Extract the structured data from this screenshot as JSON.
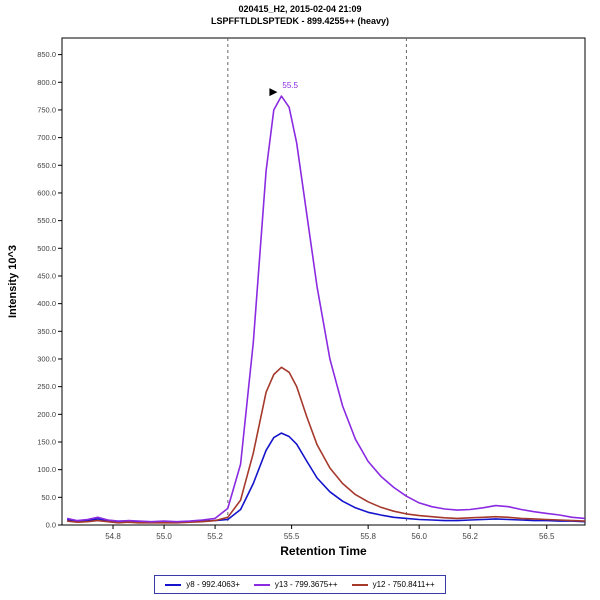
{
  "header": {
    "line1": "020415_H2, 2015-02-04 21:09",
    "line2": "LSPFFTLDLSPTEDK - 899.4255++ (heavy)"
  },
  "chart_data": {
    "type": "line",
    "title": "020415_H2, 2015-02-04 21:09",
    "subtitle": "LSPFFTLDLSPTEDK - 899.4255++ (heavy)",
    "xlabel": "Retention Time",
    "ylabel": "Intensity 10^3",
    "xlim": [
      54.6,
      56.65
    ],
    "ylim": [
      0,
      880
    ],
    "x_ticks": [
      54.8,
      55.0,
      55.2,
      55.5,
      55.8,
      56.0,
      56.2,
      56.5
    ],
    "y_ticks": [
      0,
      50,
      100,
      150,
      200,
      250,
      300,
      350,
      400,
      450,
      500,
      550,
      600,
      650,
      700,
      750,
      800,
      850
    ],
    "boundaries": [
      55.25,
      55.95
    ],
    "boundary_style": {
      "color": "#666666",
      "dash": "3,3"
    },
    "annotation": {
      "text": "55.5",
      "x": 55.46,
      "y": 775,
      "color": "#8a2be2",
      "arrow_color": "#000000"
    },
    "legend_position": "bottom",
    "grid": false,
    "x": [
      54.62,
      54.66,
      54.7,
      54.74,
      54.78,
      54.82,
      54.86,
      54.9,
      54.95,
      55.0,
      55.05,
      55.1,
      55.15,
      55.2,
      55.25,
      55.3,
      55.35,
      55.4,
      55.43,
      55.46,
      55.49,
      55.52,
      55.56,
      55.6,
      55.65,
      55.7,
      55.75,
      55.8,
      55.85,
      55.9,
      55.95,
      56.0,
      56.05,
      56.1,
      56.15,
      56.2,
      56.25,
      56.3,
      56.35,
      56.4,
      56.45,
      56.5,
      56.55,
      56.6,
      56.65
    ],
    "series": [
      {
        "name": "y8 - 992.4063+",
        "color": "#1414cc",
        "values": [
          10,
          6,
          8,
          11,
          7,
          5,
          6,
          6,
          5,
          6,
          5,
          6,
          7,
          8,
          10,
          28,
          75,
          135,
          158,
          166,
          160,
          146,
          115,
          85,
          60,
          43,
          31,
          23,
          18,
          14,
          12,
          10,
          9,
          8,
          8,
          9,
          10,
          11,
          10,
          9,
          8,
          8,
          7,
          7,
          6
        ]
      },
      {
        "name": "y13 - 799.3675++",
        "color": "#8a2be2",
        "values": [
          12,
          8,
          10,
          14,
          9,
          7,
          8,
          7,
          6,
          7,
          6,
          7,
          9,
          12,
          30,
          110,
          330,
          640,
          750,
          775,
          755,
          690,
          560,
          430,
          300,
          215,
          155,
          115,
          88,
          68,
          52,
          40,
          33,
          29,
          27,
          28,
          31,
          35,
          33,
          28,
          24,
          21,
          18,
          14,
          12
        ]
      },
      {
        "name": "y12 - 750.8411++",
        "color": "#a5392c",
        "values": [
          7,
          5,
          6,
          8,
          6,
          4,
          5,
          4,
          4,
          4,
          4,
          5,
          6,
          8,
          14,
          45,
          130,
          240,
          272,
          285,
          276,
          250,
          195,
          145,
          103,
          75,
          55,
          42,
          32,
          25,
          20,
          17,
          15,
          13,
          12,
          13,
          14,
          15,
          14,
          12,
          11,
          10,
          9,
          8,
          7
        ]
      }
    ]
  }
}
